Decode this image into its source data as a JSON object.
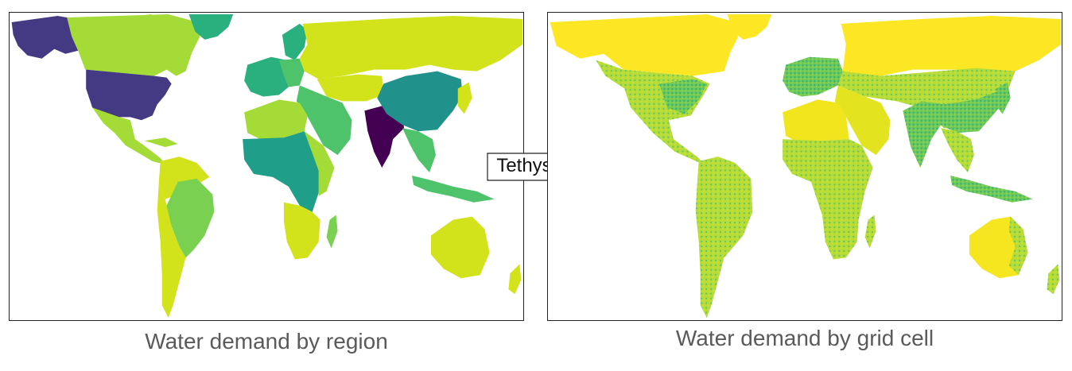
{
  "left_panel": {
    "caption": "Water demand by region"
  },
  "right_panel": {
    "caption": "Water demand by grid cell"
  },
  "arrow": {
    "label": "Tethys"
  },
  "colors": {
    "yellow_high": "#fde725",
    "yellow": "#d2e21b",
    "yellow_green": "#a5db36",
    "light_green": "#7ad151",
    "green": "#4ec36b",
    "teal_green": "#2ab07f",
    "teal": "#1f9e89",
    "blue_teal": "#21918c",
    "dark_blue": "#443a83",
    "dark_purple": "#440154"
  }
}
